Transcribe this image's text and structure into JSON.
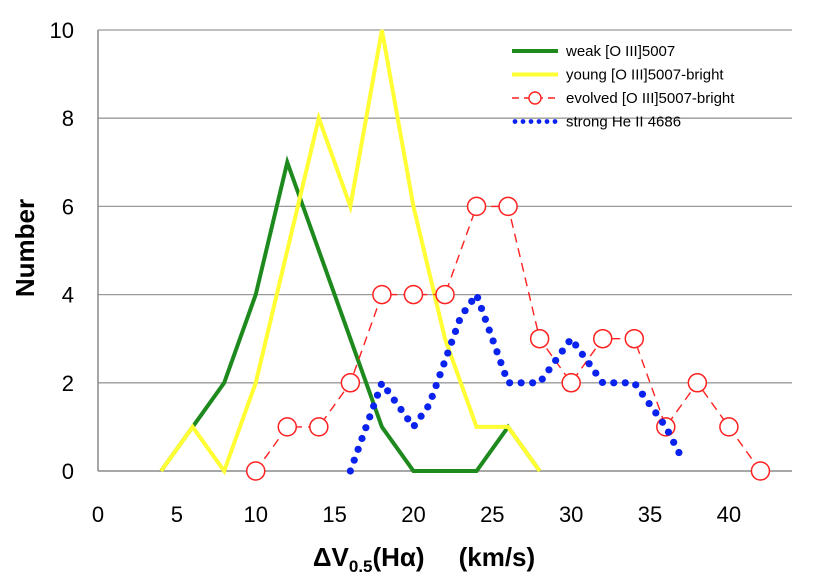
{
  "chart_data": {
    "type": "line",
    "title": "",
    "xlabel": "ΔV0.5(Hα)    (km/s)",
    "xlabel_parts": {
      "delta": "ΔV",
      "sub": "0.5",
      "paren": "(Hα)",
      "units": "(km/s)"
    },
    "ylabel": "Number",
    "xlim": [
      0,
      44
    ],
    "ylim": [
      0,
      10
    ],
    "xticks": [
      0,
      5,
      10,
      15,
      20,
      25,
      30,
      35,
      40
    ],
    "yticks": [
      0,
      2,
      4,
      6,
      8,
      10
    ],
    "grid": "horizontal",
    "legend_position": "top-right",
    "series": [
      {
        "name": "weak [O III]5007",
        "color": "#1e8a1e",
        "style": "solid",
        "x": [
          4,
          6,
          8,
          10,
          12,
          14,
          16,
          18,
          20,
          22,
          24,
          26,
          28
        ],
        "y": [
          0,
          1,
          2,
          4,
          7,
          5,
          3,
          1,
          0,
          0,
          0,
          1,
          0
        ]
      },
      {
        "name": "young [O III]5007-bright",
        "color": "#ffff33",
        "style": "solid",
        "x": [
          4,
          6,
          8,
          10,
          12,
          14,
          16,
          18,
          20,
          22,
          24,
          26,
          28
        ],
        "y": [
          0,
          1,
          0,
          2,
          5,
          8,
          6,
          10,
          6,
          3,
          1,
          1,
          0
        ]
      },
      {
        "name": "evolved [O III]5007-bright",
        "color": "#ff2020",
        "style": "dashed-circles",
        "x": [
          10,
          12,
          14,
          16,
          18,
          20,
          22,
          24,
          26,
          28,
          30,
          32,
          34,
          36,
          38,
          40,
          42
        ],
        "y": [
          0,
          1,
          1,
          2,
          4,
          4,
          4,
          6,
          6,
          3,
          2,
          3,
          3,
          1,
          2,
          1,
          0
        ]
      },
      {
        "name": "strong He II 4686",
        "color": "#0a22ee",
        "style": "dotted",
        "x": [
          16,
          17,
          18,
          19,
          20,
          21,
          22,
          23,
          24,
          25,
          26,
          27,
          28,
          29,
          30,
          31,
          32,
          33,
          34,
          35,
          36,
          37
        ],
        "y": [
          0,
          1,
          2,
          1.5,
          1,
          1.5,
          2.5,
          3.5,
          4,
          3,
          2,
          2,
          2,
          2.5,
          3,
          2.5,
          2,
          2,
          2,
          1.5,
          1,
          0.3
        ]
      }
    ]
  }
}
